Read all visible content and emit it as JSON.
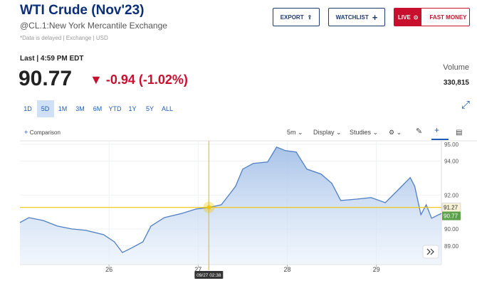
{
  "header": {
    "title": "WTI Crude (Nov'23)",
    "symbol": "@CL.1:New York Mercantile Exchange",
    "note": "*Data is delayed | Exchange | USD"
  },
  "buttons": {
    "export": "EXPORT",
    "watchlist": "WATCHLIST",
    "live": "LIVE",
    "fast_money": "FAST MONEY"
  },
  "quote": {
    "last_label": "Last | 4:59 PM EDT",
    "last": 90.77,
    "change": -0.94,
    "change_pct": "(-1.02%)",
    "volume_label": "Volume",
    "volume": "330,815"
  },
  "tabs": [
    "1D",
    "5D",
    "1M",
    "3M",
    "6M",
    "YTD",
    "1Y",
    "5Y",
    "ALL"
  ],
  "active_tab": 1,
  "toolbar": {
    "comparison": "Comparison",
    "interval": "5m",
    "display": "Display",
    "studies": "Studies"
  },
  "chart_data": {
    "type": "area",
    "x": [
      25.0,
      25.1,
      25.26,
      25.42,
      25.58,
      25.74,
      25.94,
      26.06,
      26.15,
      26.26,
      26.38,
      26.47,
      26.62,
      26.82,
      26.98,
      27.12,
      27.26,
      27.34,
      27.42,
      27.5,
      27.62,
      27.78,
      27.88,
      27.98,
      28.1,
      28.22,
      28.38,
      28.5,
      28.6,
      28.78,
      28.94,
      29.1,
      29.26,
      29.38,
      29.43,
      29.5,
      29.56,
      29.62,
      29.73
    ],
    "series": [
      {
        "color": "#4f7fc4",
        "values": [
          90.38,
          90.67,
          90.5,
          90.17,
          90.0,
          89.92,
          89.66,
          89.24,
          88.61,
          88.9,
          89.24,
          90.17,
          90.67,
          90.92,
          91.18,
          91.26,
          91.43,
          91.97,
          92.52,
          93.53,
          93.87,
          93.95,
          94.83,
          94.62,
          94.54,
          93.53,
          93.24,
          92.69,
          91.68,
          91.76,
          91.85,
          91.55,
          92.39,
          93.03,
          92.52,
          90.84,
          91.43,
          90.63,
          90.92
        ]
      }
    ],
    "xlim": [
      25,
      29.73
    ],
    "xticks": [
      26,
      27,
      28,
      29
    ],
    "ylim": [
      87.9,
      95.2
    ],
    "yticks": [
      {
        "value": 89,
        "label": "89.00"
      },
      {
        "value": 90,
        "label": "90.00"
      },
      {
        "value": 92,
        "label": "92.00"
      },
      {
        "value": 94,
        "label": "94.00"
      },
      {
        "value": 95,
        "label": "95.00"
      }
    ],
    "grid": true,
    "crosshair": {
      "x": 27.12,
      "x_label": "09/27 02:38",
      "y": 91.27
    }
  }
}
